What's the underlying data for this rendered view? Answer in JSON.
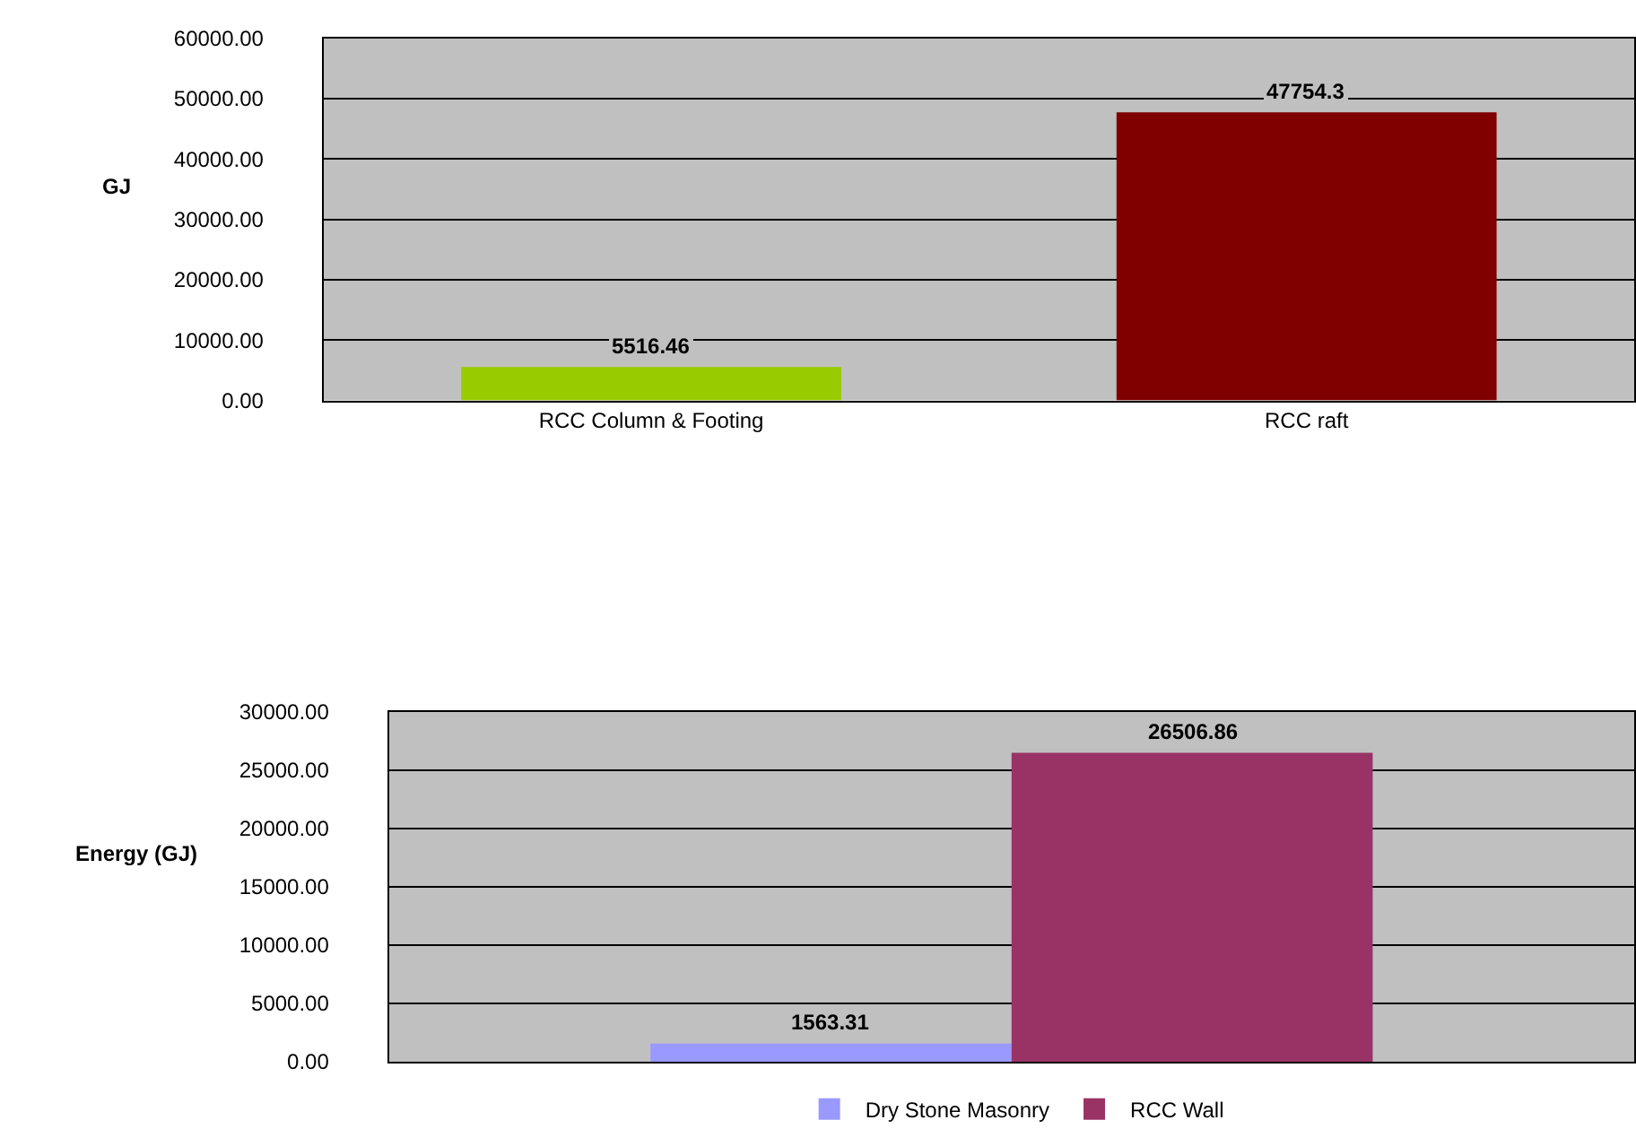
{
  "chart_data": [
    {
      "type": "bar",
      "ylabel": "GJ",
      "categories": [
        "RCC Column & Footing",
        "RCC raft"
      ],
      "values": [
        5516.46,
        47754.3
      ],
      "colors": [
        "#99cc00",
        "#800000"
      ],
      "data_labels": true,
      "grid": "y",
      "legend": false,
      "ylim": [
        0,
        60000
      ],
      "yticks": [
        {
          "value": 0,
          "label": "0.00"
        },
        {
          "value": 10000,
          "label": "10000.00"
        },
        {
          "value": 20000,
          "label": "20000.00"
        },
        {
          "value": 30000,
          "label": "30000.00"
        },
        {
          "value": 40000,
          "label": "40000.00"
        },
        {
          "value": 50000,
          "label": "50000.00"
        },
        {
          "value": 60000,
          "label": "60000.00"
        }
      ]
    },
    {
      "type": "bar",
      "ylabel": "Energy (GJ)",
      "categories": [
        null
      ],
      "series": [
        {
          "name": "Dry Stone Masonry",
          "color": "#9999ff",
          "values": [
            1563.31
          ]
        },
        {
          "name": "RCC Wall",
          "color": "#993366",
          "values": [
            26506.86
          ]
        }
      ],
      "data_labels": true,
      "grid": "y",
      "legend": "bottom",
      "ylim": [
        0,
        30000
      ],
      "yticks": [
        {
          "value": 0,
          "label": "0.00"
        },
        {
          "value": 5000,
          "label": "5000.00"
        },
        {
          "value": 10000,
          "label": "10000.00"
        },
        {
          "value": 15000,
          "label": "15000.00"
        },
        {
          "value": 20000,
          "label": "20000.00"
        },
        {
          "value": 25000,
          "label": "25000.00"
        },
        {
          "value": 30000,
          "label": "30000.00"
        }
      ]
    }
  ]
}
